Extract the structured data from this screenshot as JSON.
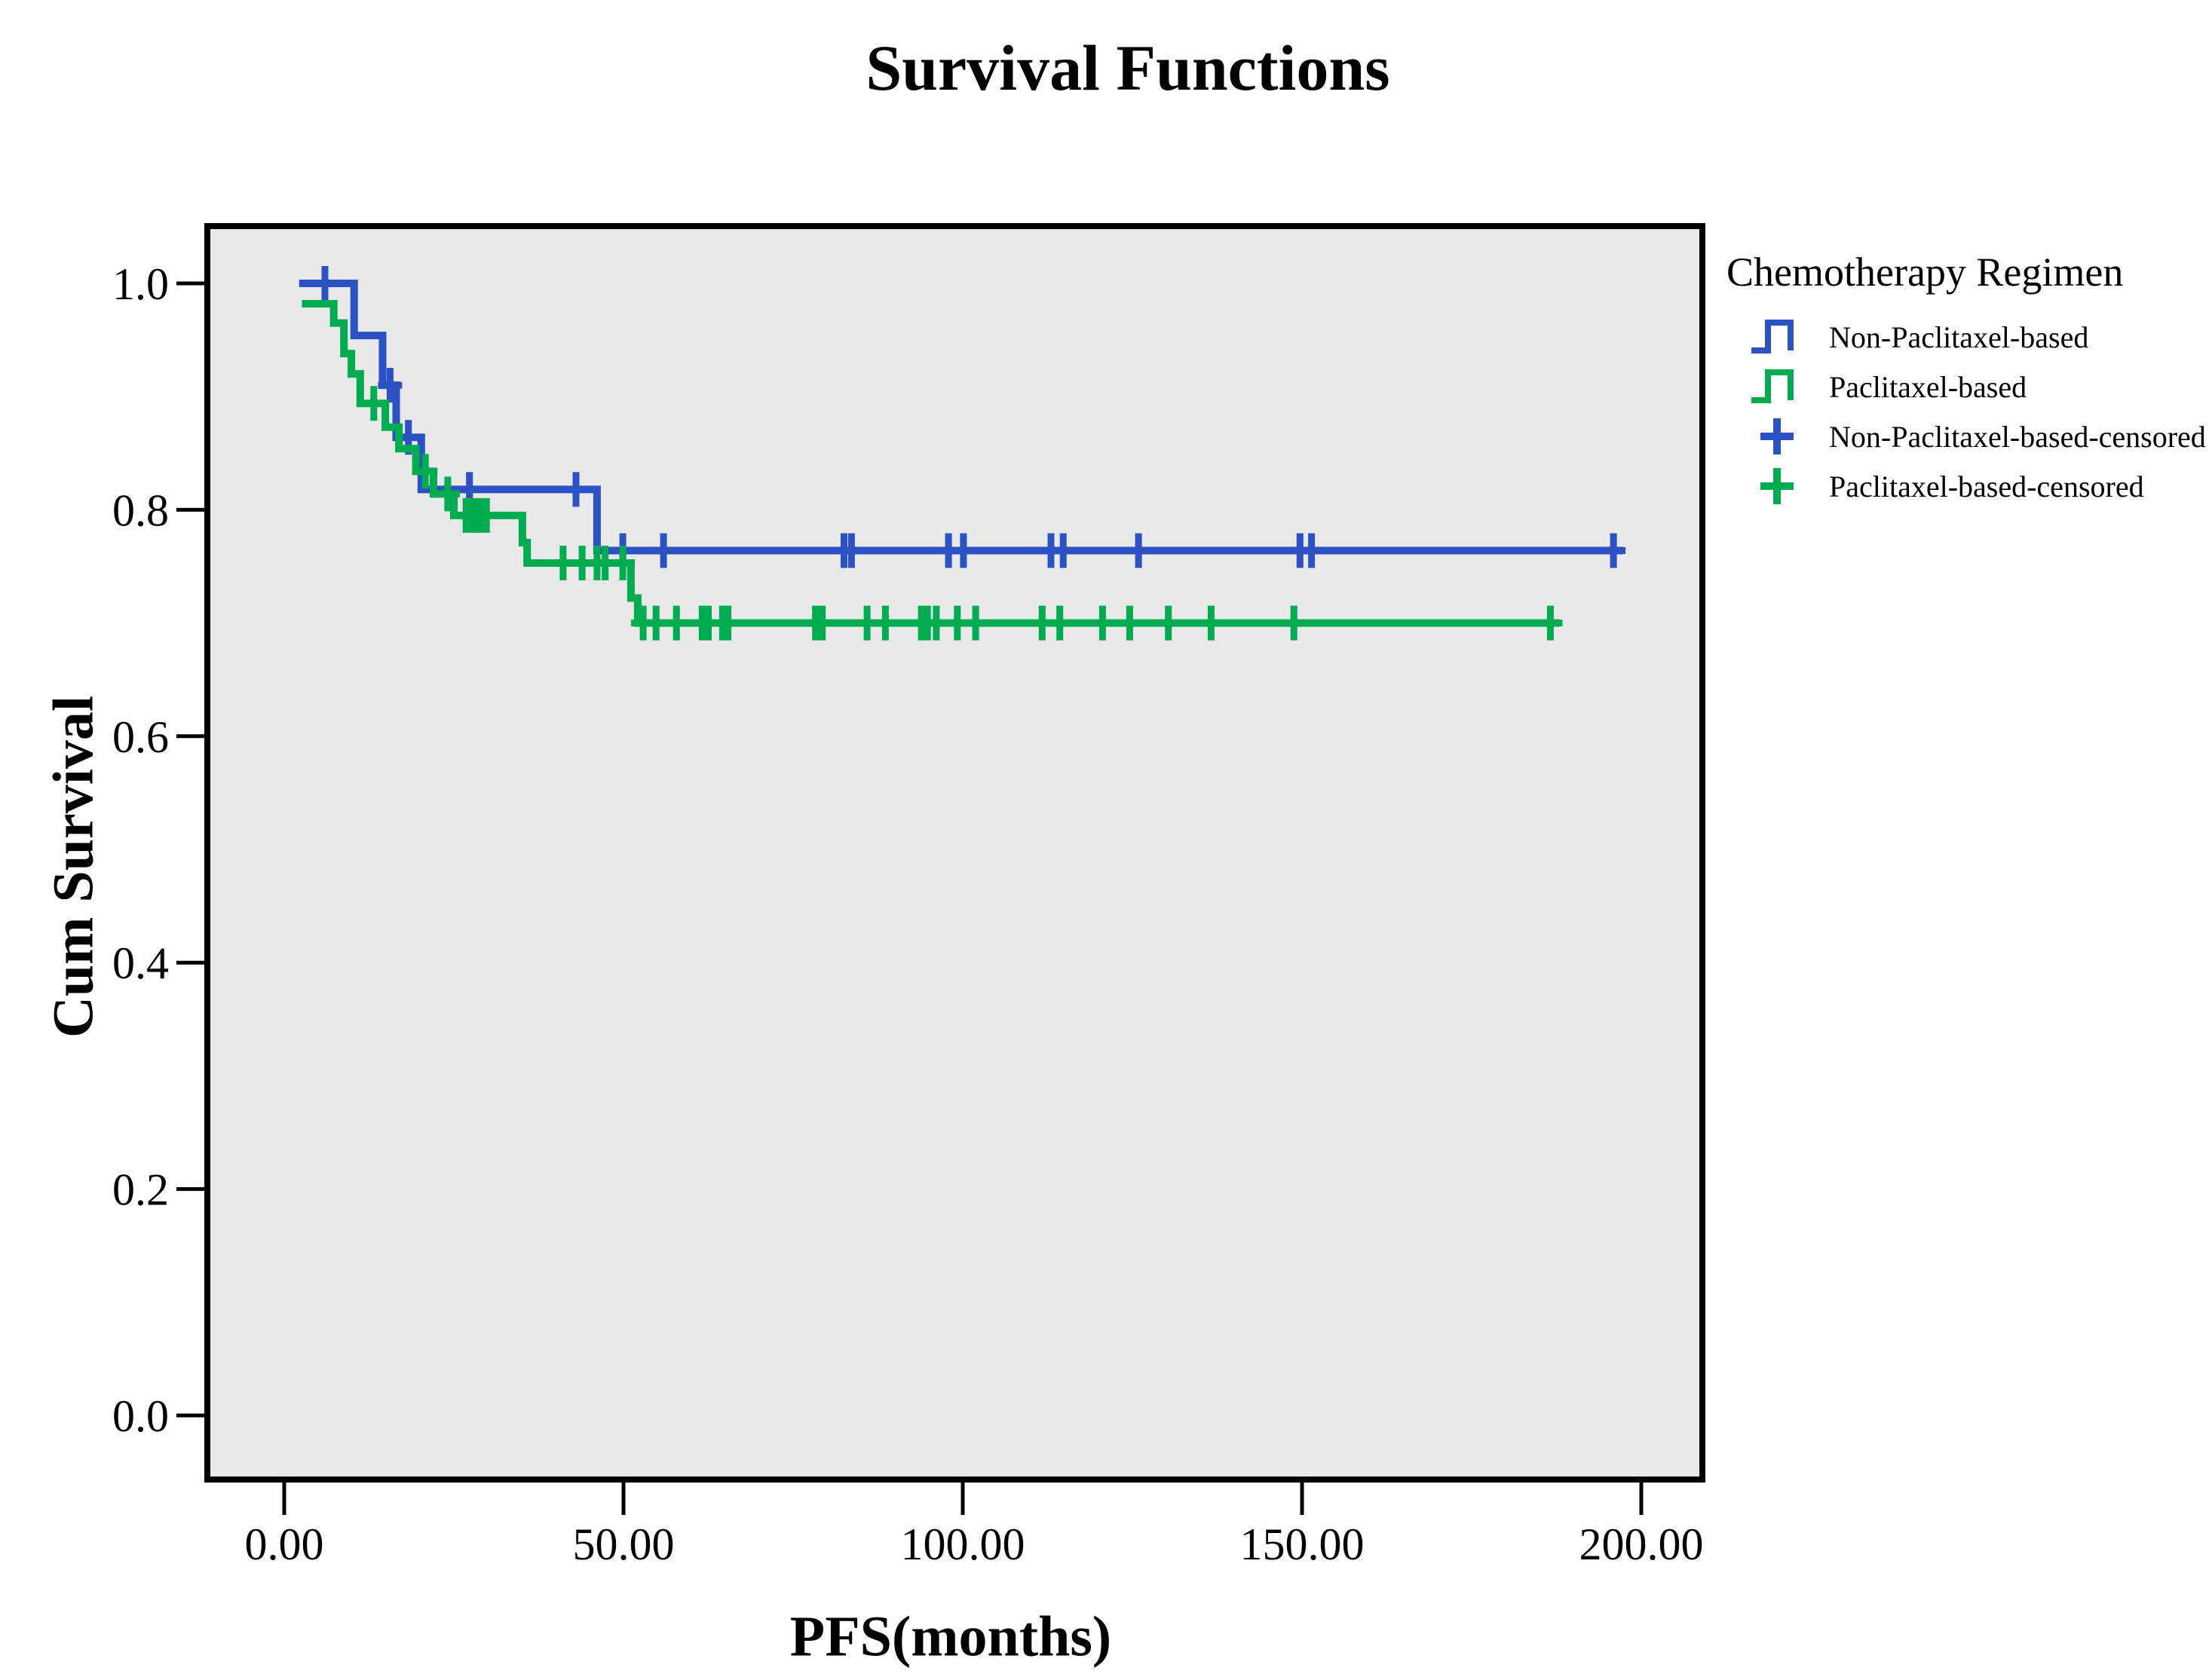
{
  "colors": {
    "non_paclitaxel": "#2B51C5",
    "paclitaxel": "#00AC50",
    "plot_bg": "#E9E9E9",
    "border": "#000000",
    "text": "#000000"
  },
  "legend": {
    "title": "Chemotherapy Regimen",
    "items": [
      {
        "label": "Non-Paclitaxel-based",
        "marker": "step",
        "color_key": "non_paclitaxel"
      },
      {
        "label": "Paclitaxel-based",
        "marker": "step",
        "color_key": "paclitaxel"
      },
      {
        "label": "Non-Paclitaxel-based-censored",
        "marker": "plus",
        "color_key": "non_paclitaxel"
      },
      {
        "label": "Paclitaxel-based-censored",
        "marker": "plus",
        "color_key": "paclitaxel"
      }
    ]
  },
  "chart_data": {
    "type": "line",
    "subtype": "kaplan-meier-step",
    "title": "Survival Functions",
    "xlabel": "PFS(months)",
    "ylabel": "Cum Survival",
    "xlim": [
      0,
      200
    ],
    "ylim": [
      0.0,
      1.0
    ],
    "grid": false,
    "legend_position": "right",
    "x_ticks": [
      "0.00",
      "50.00",
      "100.00",
      "150.00",
      "200.00"
    ],
    "x_tick_values": [
      0,
      50,
      100,
      150,
      200
    ],
    "y_ticks": [
      "0.0",
      "0.2",
      "0.4",
      "0.6",
      "0.8",
      "1.0"
    ],
    "y_tick_values": [
      0.0,
      0.2,
      0.4,
      0.6,
      0.8,
      1.0
    ],
    "series": [
      {
        "name": "Non-Paclitaxel-based",
        "color_key": "non_paclitaxel",
        "steps": [
          [
            2.2,
            1.0
          ],
          [
            10.3,
            0.954
          ],
          [
            14.5,
            0.91
          ],
          [
            16.5,
            0.864
          ],
          [
            20.2,
            0.818
          ],
          [
            46.1,
            0.764
          ],
          [
            197.3,
            0.764
          ]
        ],
        "censored": [
          [
            6,
            1.0
          ],
          [
            15.6,
            0.91
          ],
          [
            18.3,
            0.864
          ],
          [
            27.3,
            0.818
          ],
          [
            43,
            0.818
          ],
          [
            49.9,
            0.764
          ],
          [
            55.9,
            0.764
          ],
          [
            82.5,
            0.764
          ],
          [
            83.6,
            0.764
          ],
          [
            97.9,
            0.764
          ],
          [
            100.1,
            0.764
          ],
          [
            113,
            0.764
          ],
          [
            114.8,
            0.764
          ],
          [
            125.9,
            0.764
          ],
          [
            149.7,
            0.764
          ],
          [
            151.4,
            0.764
          ],
          [
            195.9,
            0.764
          ]
        ]
      },
      {
        "name": "Paclitaxel-based",
        "color_key": "paclitaxel",
        "steps": [
          [
            2.6,
            0.982
          ],
          [
            7.3,
            0.965
          ],
          [
            8.8,
            0.938
          ],
          [
            9.9,
            0.92
          ],
          [
            11.2,
            0.894
          ],
          [
            14.9,
            0.873
          ],
          [
            16.9,
            0.854
          ],
          [
            19.4,
            0.834
          ],
          [
            22.0,
            0.814
          ],
          [
            25.0,
            0.795
          ],
          [
            35.1,
            0.771
          ],
          [
            35.8,
            0.753
          ],
          [
            51.1,
            0.722
          ],
          [
            52.1,
            0.7
          ],
          [
            187.9,
            0.7
          ]
        ],
        "censored": [
          [
            13.2,
            0.894
          ],
          [
            20.8,
            0.834
          ],
          [
            24.1,
            0.814
          ],
          [
            26.8,
            0.795
          ],
          [
            27.8,
            0.795
          ],
          [
            28.8,
            0.795
          ],
          [
            29.8,
            0.795
          ],
          [
            41.1,
            0.753
          ],
          [
            43.9,
            0.753
          ],
          [
            46.1,
            0.753
          ],
          [
            47.3,
            0.753
          ],
          [
            49.9,
            0.753
          ],
          [
            52.9,
            0.7
          ],
          [
            54.8,
            0.7
          ],
          [
            57.8,
            0.7
          ],
          [
            61.6,
            0.7
          ],
          [
            62.5,
            0.7
          ],
          [
            64.6,
            0.7
          ],
          [
            65.4,
            0.7
          ],
          [
            78.3,
            0.7
          ],
          [
            79.3,
            0.7
          ],
          [
            85.9,
            0.7
          ],
          [
            88.6,
            0.7
          ],
          [
            93.9,
            0.7
          ],
          [
            94.8,
            0.7
          ],
          [
            96.1,
            0.7
          ],
          [
            99.2,
            0.7
          ],
          [
            101.9,
            0.7
          ],
          [
            111.7,
            0.7
          ],
          [
            114.3,
            0.7
          ],
          [
            120.6,
            0.7
          ],
          [
            124.6,
            0.7
          ],
          [
            130.3,
            0.7
          ],
          [
            136.6,
            0.7
          ],
          [
            148.8,
            0.7
          ],
          [
            186.6,
            0.7
          ]
        ]
      }
    ]
  }
}
